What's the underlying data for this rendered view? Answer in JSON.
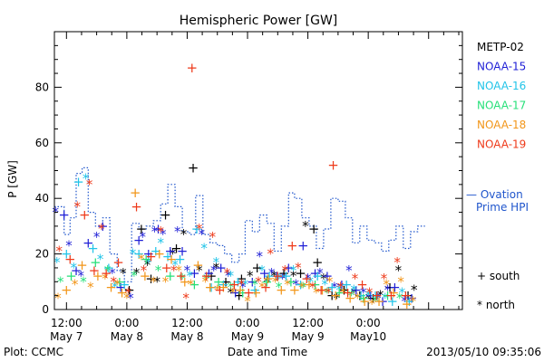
{
  "colors": {
    "METP-02": "#000000",
    "NOAA-15": "#1f1fd6",
    "NOAA-16": "#22c4e8",
    "NOAA-17": "#27e07a",
    "NOAA-18": "#f2961a",
    "NOAA-19": "#ee3a1a",
    "ovation": "#1f55cc"
  },
  "chart_data": {
    "type": "scatter",
    "title": "Hemispheric Power [GW]",
    "xlabel": "Date and Time",
    "ylabel": "P [GW]",
    "ylim": [
      0,
      100
    ],
    "xlim": [
      7.4,
      10.78
    ],
    "yticks": [
      0,
      20,
      40,
      60,
      80
    ],
    "xticks": [
      {
        "x": 7.5,
        "top": "12:00",
        "bottom": "May 7"
      },
      {
        "x": 8.0,
        "top": "0:00",
        "bottom": "May 8"
      },
      {
        "x": 8.5,
        "top": "12:00",
        "bottom": "May 8"
      },
      {
        "x": 9.0,
        "top": "0:00",
        "bottom": "May 9"
      },
      {
        "x": 9.5,
        "top": "12:00",
        "bottom": "May 9"
      },
      {
        "x": 10.0,
        "top": "0:00",
        "bottom": "May10"
      }
    ],
    "legend": [
      "METP-02",
      "NOAA-15",
      "NOAA-16",
      "NOAA-17",
      "NOAA-18",
      "NOAA-19"
    ],
    "ovation_label": [
      "— Ovation",
      "Prime HPI"
    ],
    "symbol_legend": [
      "+ south",
      "* north"
    ],
    "footer_left": "Plot: CCMC",
    "footer_right": "2013/05/10 09:35:06",
    "series": [
      {
        "name": "METP-02",
        "points": [
          [
            7.97,
            13
          ],
          [
            8.02,
            7
          ],
          [
            8.08,
            13
          ],
          [
            8.12,
            29
          ],
          [
            8.17,
            16
          ],
          [
            8.2,
            11
          ],
          [
            8.25,
            10
          ],
          [
            8.32,
            34
          ],
          [
            8.38,
            20
          ],
          [
            8.41,
            22
          ],
          [
            8.47,
            27
          ],
          [
            8.55,
            51
          ],
          [
            8.6,
            14
          ],
          [
            8.7,
            12
          ],
          [
            8.74,
            15
          ],
          [
            8.82,
            10
          ],
          [
            8.86,
            6
          ],
          [
            8.93,
            5
          ],
          [
            9.02,
            12
          ],
          [
            9.08,
            15
          ],
          [
            9.16,
            10
          ],
          [
            9.3,
            13
          ],
          [
            9.38,
            12
          ],
          [
            9.44,
            13
          ],
          [
            9.48,
            30
          ],
          [
            9.55,
            29
          ],
          [
            9.63,
            11
          ],
          [
            9.7,
            5
          ],
          [
            9.74,
            4
          ],
          [
            9.8,
            7
          ],
          [
            9.88,
            6
          ],
          [
            9.93,
            5
          ],
          [
            10.0,
            4
          ],
          [
            10.04,
            4
          ],
          [
            10.1,
            5
          ],
          [
            10.18,
            8
          ],
          [
            10.25,
            14
          ],
          [
            10.33,
            5
          ],
          [
            10.38,
            7
          ],
          [
            8.95,
            11
          ],
          [
            9.22,
            12
          ],
          [
            9.58,
            17
          ]
        ]
      },
      {
        "name": "NOAA-15",
        "points": [
          [
            7.41,
            35
          ],
          [
            7.48,
            34
          ],
          [
            7.52,
            23
          ],
          [
            7.58,
            14
          ],
          [
            7.62,
            12
          ],
          [
            7.68,
            24
          ],
          [
            7.75,
            26
          ],
          [
            7.8,
            30
          ],
          [
            7.88,
            13
          ],
          [
            7.95,
            8
          ],
          [
            8.03,
            4
          ],
          [
            8.1,
            25
          ],
          [
            8.13,
            26
          ],
          [
            8.18,
            20
          ],
          [
            8.23,
            28
          ],
          [
            8.26,
            29
          ],
          [
            8.3,
            27
          ],
          [
            8.36,
            21
          ],
          [
            8.42,
            28
          ],
          [
            8.46,
            21
          ],
          [
            8.5,
            14
          ],
          [
            8.56,
            13
          ],
          [
            8.62,
            27
          ],
          [
            8.68,
            13
          ],
          [
            8.72,
            14
          ],
          [
            8.78,
            15
          ],
          [
            8.84,
            12
          ],
          [
            8.9,
            6
          ],
          [
            8.96,
            8
          ],
          [
            9.04,
            10
          ],
          [
            9.1,
            19
          ],
          [
            9.14,
            13
          ],
          [
            9.2,
            13
          ],
          [
            9.24,
            12
          ],
          [
            9.29,
            11
          ],
          [
            9.34,
            15
          ],
          [
            9.4,
            9
          ],
          [
            9.46,
            23
          ],
          [
            9.5,
            11
          ],
          [
            9.56,
            13
          ],
          [
            9.6,
            13
          ],
          [
            9.66,
            12
          ],
          [
            9.72,
            8
          ],
          [
            9.78,
            9
          ],
          [
            9.84,
            14
          ],
          [
            9.9,
            7
          ],
          [
            9.96,
            6
          ],
          [
            10.02,
            5
          ],
          [
            10.08,
            4
          ],
          [
            10.12,
            3
          ],
          [
            10.16,
            7
          ],
          [
            10.22,
            8
          ],
          [
            10.3,
            3
          ],
          [
            10.36,
            4
          ]
        ]
      },
      {
        "name": "NOAA-16",
        "points": [
          [
            7.42,
            17
          ],
          [
            7.5,
            20
          ],
          [
            7.56,
            15
          ],
          [
            7.6,
            46
          ],
          [
            7.66,
            47
          ],
          [
            7.72,
            22
          ],
          [
            7.78,
            18
          ],
          [
            7.85,
            15
          ],
          [
            7.9,
            8
          ],
          [
            7.98,
            9
          ],
          [
            8.05,
            20
          ],
          [
            8.1,
            20
          ],
          [
            8.18,
            17
          ],
          [
            8.24,
            21
          ],
          [
            8.28,
            24
          ],
          [
            8.34,
            19
          ],
          [
            8.4,
            16
          ],
          [
            8.44,
            18
          ],
          [
            8.52,
            12
          ],
          [
            8.58,
            29
          ],
          [
            8.64,
            22
          ],
          [
            8.7,
            8
          ],
          [
            8.74,
            17
          ],
          [
            8.8,
            9
          ],
          [
            8.86,
            12
          ],
          [
            8.92,
            10
          ],
          [
            8.98,
            9
          ],
          [
            9.06,
            7
          ],
          [
            9.12,
            14
          ],
          [
            9.18,
            12
          ],
          [
            9.26,
            11
          ],
          [
            9.32,
            12
          ],
          [
            9.38,
            14
          ],
          [
            9.44,
            9
          ],
          [
            9.52,
            10
          ],
          [
            9.58,
            12
          ],
          [
            9.64,
            9
          ],
          [
            9.7,
            8
          ],
          [
            9.76,
            7
          ],
          [
            9.82,
            9
          ],
          [
            9.88,
            7
          ],
          [
            9.94,
            5
          ],
          [
            10.0,
            5
          ],
          [
            10.06,
            5
          ],
          [
            10.14,
            4
          ],
          [
            10.2,
            3
          ],
          [
            10.28,
            6
          ],
          [
            10.34,
            3
          ]
        ]
      },
      {
        "name": "NOAA-17",
        "points": [
          [
            7.45,
            10
          ],
          [
            7.54,
            12
          ],
          [
            7.64,
            10
          ],
          [
            7.74,
            17
          ],
          [
            7.84,
            14
          ],
          [
            7.94,
            10
          ],
          [
            8.06,
            12
          ],
          [
            8.16,
            18
          ],
          [
            8.26,
            14
          ],
          [
            8.36,
            12
          ],
          [
            8.46,
            11
          ],
          [
            8.56,
            9
          ],
          [
            8.66,
            11
          ],
          [
            8.76,
            10
          ],
          [
            8.86,
            8
          ],
          [
            8.96,
            6
          ],
          [
            9.06,
            9
          ],
          [
            9.16,
            10
          ],
          [
            9.26,
            8
          ],
          [
            9.36,
            10
          ],
          [
            9.46,
            8
          ],
          [
            9.56,
            9
          ],
          [
            9.66,
            6
          ],
          [
            9.76,
            6
          ],
          [
            9.86,
            5
          ],
          [
            9.96,
            4
          ],
          [
            10.06,
            3
          ],
          [
            10.16,
            5
          ],
          [
            10.26,
            4
          ]
        ]
      },
      {
        "name": "NOAA-18",
        "points": [
          [
            7.43,
            4
          ],
          [
            7.5,
            7
          ],
          [
            7.57,
            9
          ],
          [
            7.63,
            16
          ],
          [
            7.7,
            8
          ],
          [
            7.76,
            12
          ],
          [
            7.82,
            11
          ],
          [
            7.87,
            8
          ],
          [
            7.92,
            9
          ],
          [
            7.96,
            6
          ],
          [
            8.0,
            4
          ],
          [
            8.07,
            42
          ],
          [
            8.12,
            18
          ],
          [
            8.15,
            12
          ],
          [
            8.22,
            10
          ],
          [
            8.27,
            20
          ],
          [
            8.32,
            10
          ],
          [
            8.37,
            18
          ],
          [
            8.43,
            14
          ],
          [
            8.48,
            10
          ],
          [
            8.53,
            9
          ],
          [
            8.59,
            16
          ],
          [
            8.65,
            10
          ],
          [
            8.69,
            8
          ],
          [
            8.75,
            7
          ],
          [
            8.8,
            8
          ],
          [
            8.88,
            6
          ],
          [
            8.94,
            7
          ],
          [
            9.0,
            3
          ],
          [
            9.07,
            6
          ],
          [
            9.12,
            8
          ],
          [
            9.17,
            11
          ],
          [
            9.23,
            10
          ],
          [
            9.28,
            7
          ],
          [
            9.33,
            9
          ],
          [
            9.39,
            7
          ],
          [
            9.45,
            8
          ],
          [
            9.51,
            9
          ],
          [
            9.57,
            6
          ],
          [
            9.62,
            7
          ],
          [
            9.68,
            10
          ],
          [
            9.73,
            5
          ],
          [
            9.79,
            6
          ],
          [
            9.85,
            4
          ],
          [
            9.91,
            4
          ],
          [
            9.97,
            3
          ],
          [
            10.03,
            2
          ],
          [
            10.09,
            3
          ],
          [
            10.15,
            9
          ],
          [
            10.21,
            6
          ],
          [
            10.27,
            10
          ],
          [
            10.32,
            2
          ],
          [
            10.37,
            3
          ]
        ]
      },
      {
        "name": "NOAA-19",
        "points": [
          [
            7.44,
            21
          ],
          [
            7.53,
            18
          ],
          [
            7.59,
            37
          ],
          [
            7.65,
            34
          ],
          [
            7.69,
            45
          ],
          [
            7.73,
            14
          ],
          [
            7.79,
            29
          ],
          [
            7.83,
            13
          ],
          [
            7.89,
            10
          ],
          [
            7.93,
            17
          ],
          [
            8.01,
            6
          ],
          [
            8.08,
            37
          ],
          [
            8.14,
            14
          ],
          [
            8.2,
            19
          ],
          [
            8.28,
            28
          ],
          [
            8.33,
            15
          ],
          [
            8.39,
            14
          ],
          [
            8.45,
            12
          ],
          [
            8.49,
            4
          ],
          [
            8.54,
            87
          ],
          [
            8.6,
            29
          ],
          [
            8.66,
            12
          ],
          [
            8.71,
            26
          ],
          [
            8.77,
            7
          ],
          [
            8.83,
            13
          ],
          [
            8.89,
            9
          ],
          [
            8.95,
            9
          ],
          [
            9.01,
            6
          ],
          [
            9.09,
            10
          ],
          [
            9.15,
            8
          ],
          [
            9.19,
            20
          ],
          [
            9.25,
            12
          ],
          [
            9.31,
            14
          ],
          [
            9.37,
            23
          ],
          [
            9.42,
            15
          ],
          [
            9.49,
            11
          ],
          [
            9.54,
            8
          ],
          [
            9.61,
            7
          ],
          [
            9.67,
            6
          ],
          [
            9.71,
            52
          ],
          [
            9.77,
            8
          ],
          [
            9.83,
            6
          ],
          [
            9.89,
            11
          ],
          [
            9.95,
            9
          ],
          [
            10.01,
            6
          ],
          [
            10.07,
            5
          ],
          [
            10.13,
            11
          ],
          [
            10.19,
            5
          ],
          [
            10.24,
            17
          ],
          [
            10.31,
            5
          ]
        ]
      }
    ],
    "ovation": [
      [
        7.4,
        37
      ],
      [
        7.48,
        27
      ],
      [
        7.53,
        33
      ],
      [
        7.58,
        49
      ],
      [
        7.63,
        51
      ],
      [
        7.68,
        35
      ],
      [
        7.74,
        30
      ],
      [
        7.8,
        33
      ],
      [
        7.86,
        20
      ],
      [
        7.92,
        14
      ],
      [
        7.98,
        10
      ],
      [
        8.04,
        31
      ],
      [
        8.1,
        29
      ],
      [
        8.16,
        30
      ],
      [
        8.22,
        32
      ],
      [
        8.28,
        38
      ],
      [
        8.34,
        45
      ],
      [
        8.4,
        37
      ],
      [
        8.46,
        28
      ],
      [
        8.52,
        27
      ],
      [
        8.57,
        41
      ],
      [
        8.63,
        27
      ],
      [
        8.69,
        24
      ],
      [
        8.75,
        23
      ],
      [
        8.81,
        20
      ],
      [
        8.87,
        17
      ],
      [
        8.93,
        20
      ],
      [
        8.98,
        32
      ],
      [
        9.04,
        28
      ],
      [
        9.1,
        34
      ],
      [
        9.16,
        31
      ],
      [
        9.22,
        21
      ],
      [
        9.28,
        30
      ],
      [
        9.34,
        42
      ],
      [
        9.39,
        40
      ],
      [
        9.45,
        33
      ],
      [
        9.51,
        30
      ],
      [
        9.57,
        22
      ],
      [
        9.63,
        29
      ],
      [
        9.69,
        40
      ],
      [
        9.75,
        39
      ],
      [
        9.81,
        33
      ],
      [
        9.87,
        24
      ],
      [
        9.93,
        30
      ],
      [
        9.99,
        25
      ],
      [
        10.05,
        24
      ],
      [
        10.11,
        21
      ],
      [
        10.17,
        25
      ],
      [
        10.23,
        30
      ],
      [
        10.29,
        22
      ],
      [
        10.35,
        28
      ],
      [
        10.41,
        30
      ],
      [
        10.47,
        30
      ]
    ]
  }
}
